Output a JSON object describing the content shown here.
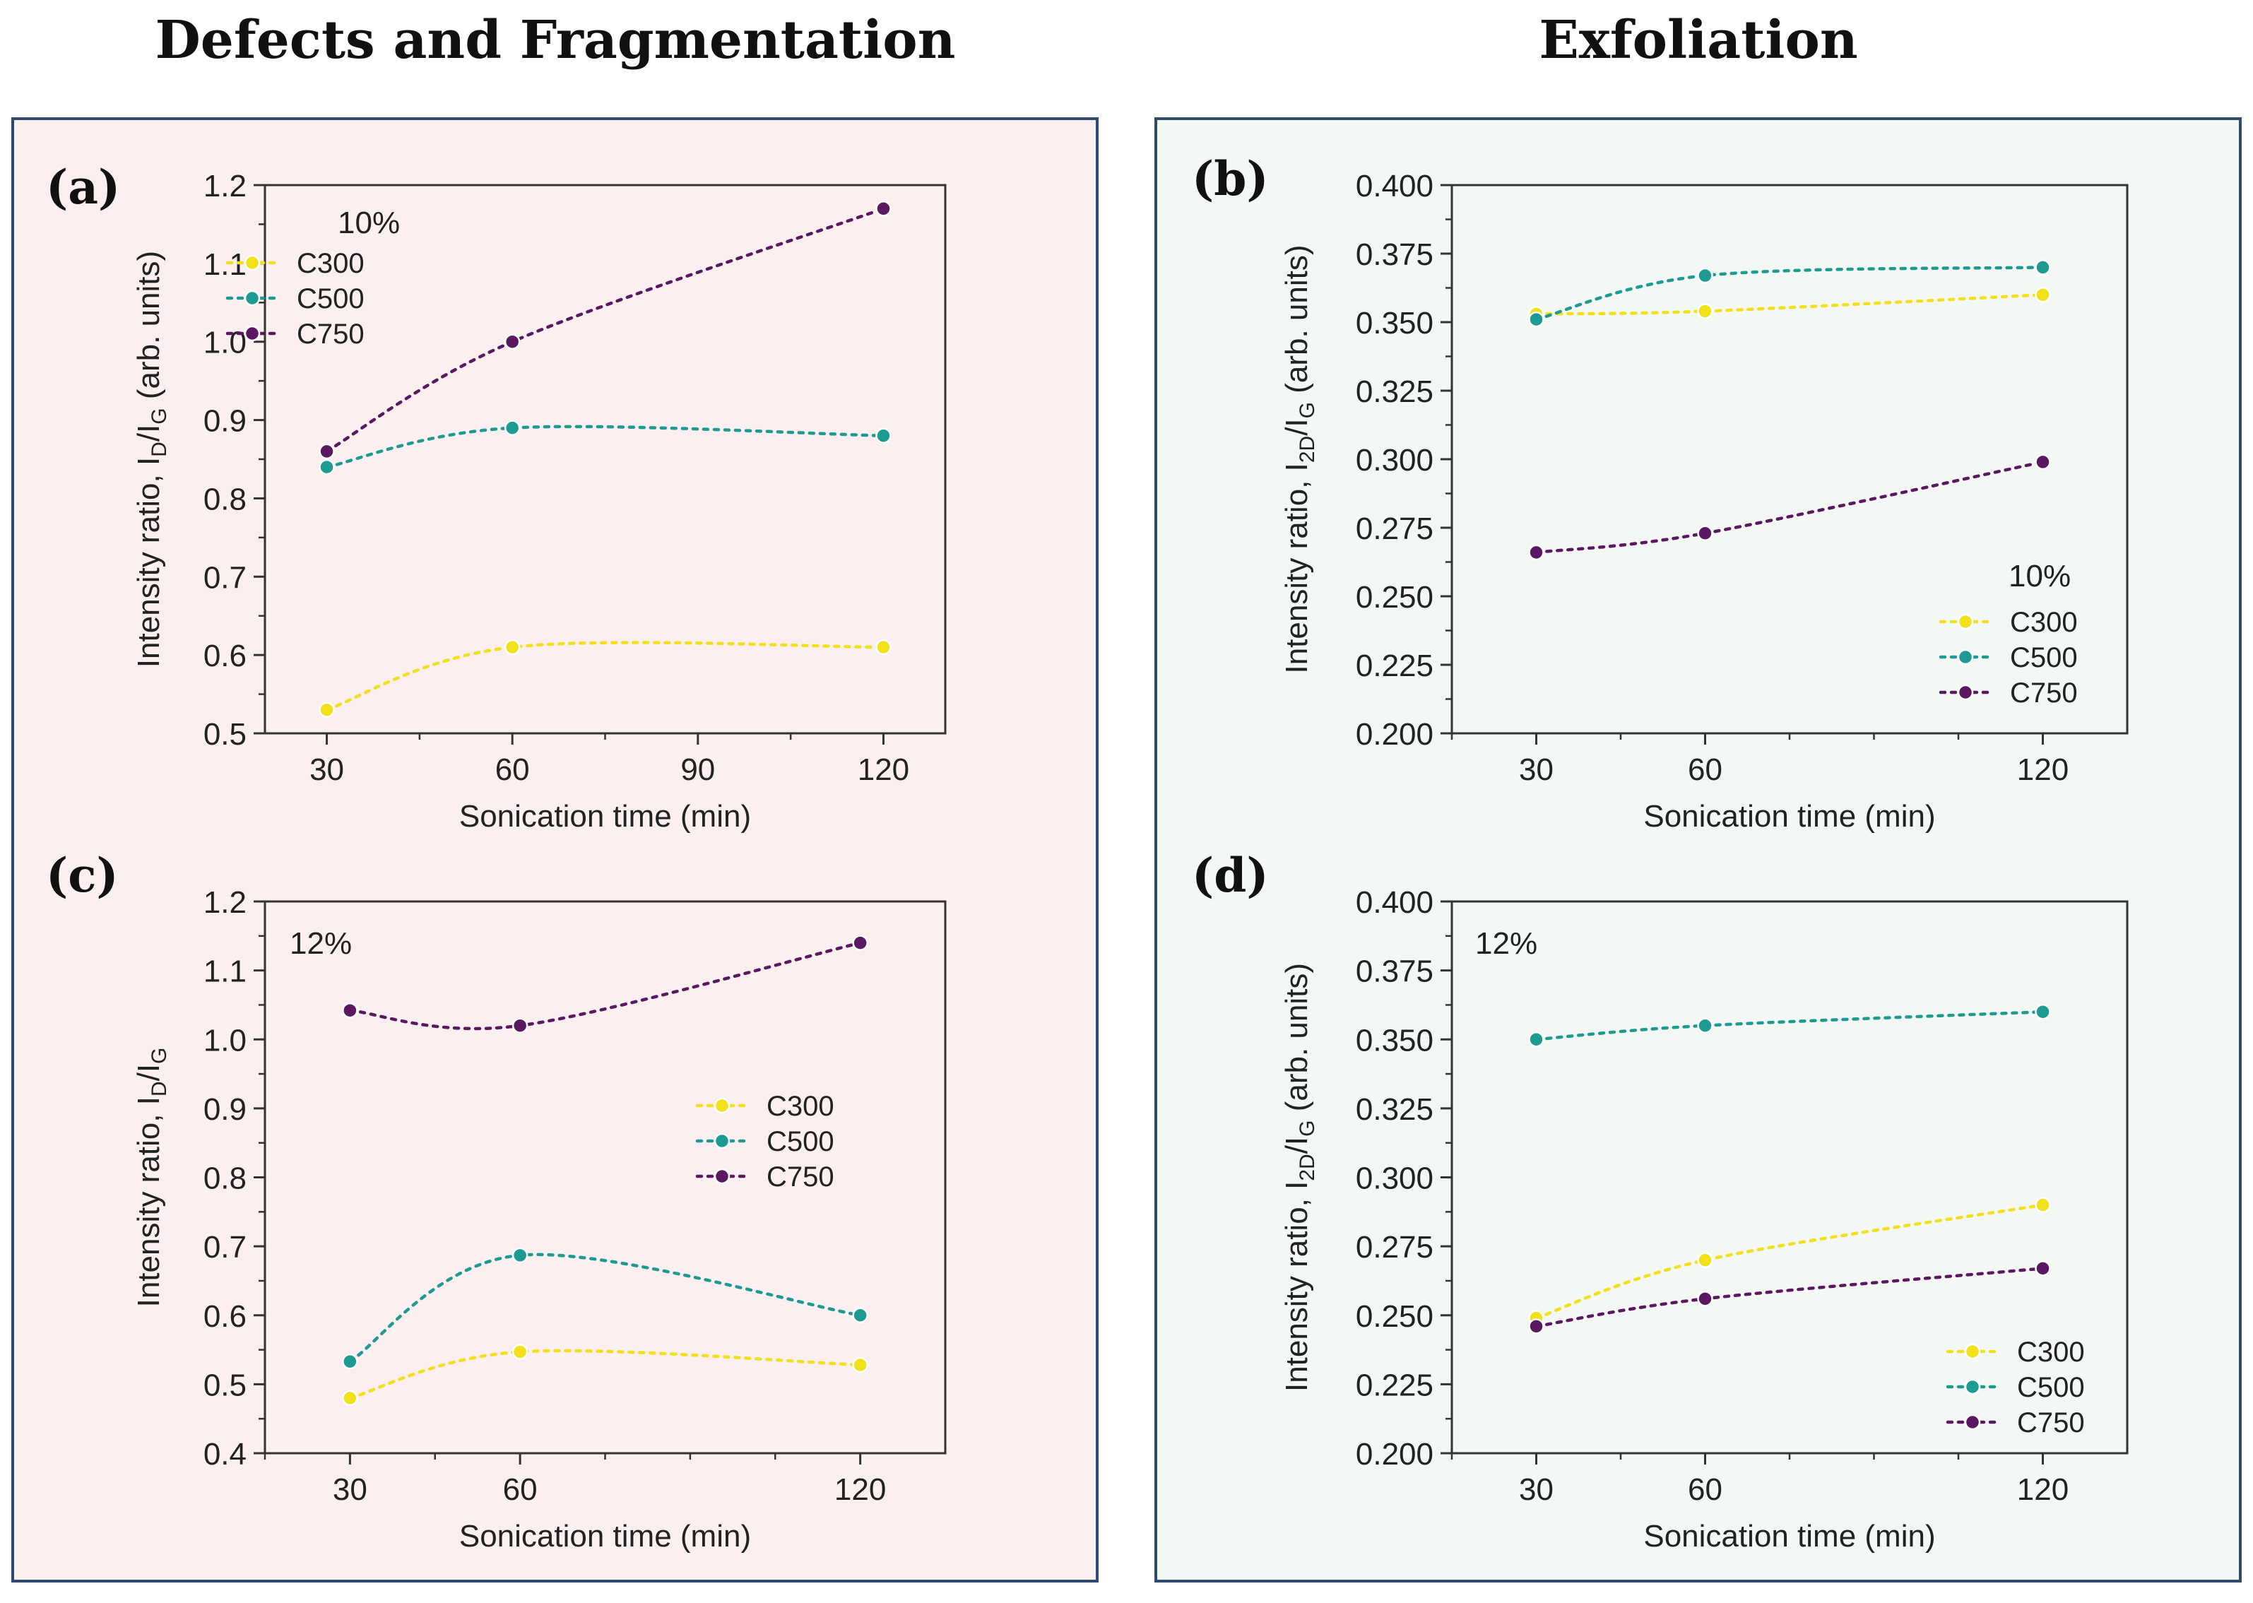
{
  "headings": {
    "left": "Defects and Fragmentation",
    "right": "Exfoliation"
  },
  "colors": {
    "left_panel_bg": "#fcefef",
    "right_panel_bg": "#f3f8f4",
    "panel_border": "#2e4a6e",
    "C300": "#f2e01a",
    "C500": "#1d9a92",
    "C750": "#5a1860"
  },
  "chart_data": [
    {
      "id": "a",
      "panel_label": "(a)",
      "type": "scatter",
      "annotation": "10%",
      "xlabel": "Sonication time (min)",
      "xlim": [
        20,
        130
      ],
      "xticks": [
        30,
        60,
        90,
        120
      ],
      "ylabel": {
        "prefix": "Intensity ratio, I",
        "sub1": "D",
        "mid": "/I",
        "sub2": "G",
        "suffix": " (arb. units)"
      },
      "ylim": [
        0.5,
        1.2
      ],
      "yticks": [
        "0.5",
        "0.6",
        "0.7",
        "0.8",
        "0.9",
        "1.0",
        "1.1",
        "1.2"
      ],
      "legend": "upper-left",
      "series": [
        {
          "name": "C300",
          "x": [
            30,
            60,
            120
          ],
          "y": [
            0.53,
            0.61,
            0.61
          ]
        },
        {
          "name": "C500",
          "x": [
            30,
            60,
            120
          ],
          "y": [
            0.84,
            0.89,
            0.88
          ]
        },
        {
          "name": "C750",
          "x": [
            30,
            60,
            120
          ],
          "y": [
            0.86,
            1.0,
            1.17
          ]
        }
      ]
    },
    {
      "id": "b",
      "panel_label": "(b)",
      "type": "scatter",
      "annotation": "10%",
      "xlabel": "Sonication time (min)",
      "xlim": [
        15,
        135
      ],
      "xticks": [
        30,
        60,
        120
      ],
      "ylabel": {
        "prefix": "Intensity ratio, I",
        "sub1": "2D",
        "mid": "/I",
        "sub2": "G",
        "suffix": " (arb. units)"
      },
      "ylim": [
        0.2,
        0.4
      ],
      "yticks": [
        "0.200",
        "0.225",
        "0.250",
        "0.275",
        "0.300",
        "0.325",
        "0.350",
        "0.375",
        "0.400"
      ],
      "legend": "lower-right",
      "series": [
        {
          "name": "C300",
          "x": [
            30,
            60,
            120
          ],
          "y": [
            0.353,
            0.354,
            0.36
          ]
        },
        {
          "name": "C500",
          "x": [
            30,
            60,
            120
          ],
          "y": [
            0.351,
            0.367,
            0.37
          ]
        },
        {
          "name": "C750",
          "x": [
            30,
            60,
            120
          ],
          "y": [
            0.266,
            0.273,
            0.299
          ]
        }
      ]
    },
    {
      "id": "c",
      "panel_label": "(c)",
      "type": "scatter",
      "annotation": "12%",
      "xlabel": "Sonication time (min)",
      "xlim": [
        15,
        135
      ],
      "xticks": [
        30,
        60,
        120
      ],
      "ylabel": {
        "prefix": "Intensity ratio, I",
        "sub1": "D",
        "mid": "/I",
        "sub2": "G",
        "suffix": ""
      },
      "ylim": [
        0.4,
        1.2
      ],
      "yticks": [
        "0.4",
        "0.5",
        "0.6",
        "0.7",
        "0.8",
        "0.9",
        "1.0",
        "1.1",
        "1.2"
      ],
      "legend": "center-right",
      "series": [
        {
          "name": "C300",
          "x": [
            30,
            60,
            120
          ],
          "y": [
            0.48,
            0.547,
            0.528
          ]
        },
        {
          "name": "C500",
          "x": [
            30,
            60,
            120
          ],
          "y": [
            0.533,
            0.687,
            0.6
          ]
        },
        {
          "name": "C750",
          "x": [
            30,
            60,
            120
          ],
          "y": [
            1.042,
            1.02,
            1.14
          ]
        }
      ]
    },
    {
      "id": "d",
      "panel_label": "(d)",
      "type": "scatter",
      "annotation": "12%",
      "xlabel": "Sonication time (min)",
      "xlim": [
        15,
        135
      ],
      "xticks": [
        30,
        60,
        120
      ],
      "ylabel": {
        "prefix": "Intensity ratio, I",
        "sub1": "2D",
        "mid": "/I",
        "sub2": "G",
        "suffix": " (arb. units)"
      },
      "ylim": [
        0.2,
        0.4
      ],
      "yticks": [
        "0.200",
        "0.225",
        "0.250",
        "0.275",
        "0.300",
        "0.325",
        "0.350",
        "0.375",
        "0.400"
      ],
      "legend": "lower-right",
      "series": [
        {
          "name": "C300",
          "x": [
            30,
            60,
            120
          ],
          "y": [
            0.249,
            0.27,
            0.29
          ]
        },
        {
          "name": "C500",
          "x": [
            30,
            60,
            120
          ],
          "y": [
            0.35,
            0.355,
            0.36
          ]
        },
        {
          "name": "C750",
          "x": [
            30,
            60,
            120
          ],
          "y": [
            0.246,
            0.256,
            0.267
          ]
        }
      ]
    }
  ]
}
